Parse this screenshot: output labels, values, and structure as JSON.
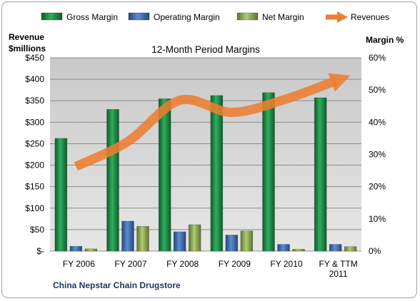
{
  "chart_data": {
    "type": "bar",
    "title": "12-Month Period Margins",
    "company": "China Nepstar Chain Drugstore",
    "ylabel_left": [
      "Revenue",
      "$millions"
    ],
    "ylabel_right": "Margin %",
    "categories": [
      [
        "FY 2006"
      ],
      [
        "FY 2007"
      ],
      [
        "FY 2008"
      ],
      [
        "FY 2009"
      ],
      [
        "FY 2010"
      ],
      [
        "FY & TTM",
        "2011"
      ]
    ],
    "left_axis": {
      "ylim": [
        0,
        450
      ],
      "ticks": [
        "$-",
        "$50",
        "$100",
        "$150",
        "$200",
        "$250",
        "$300",
        "$350",
        "$400",
        "$450"
      ]
    },
    "right_axis": {
      "ylim": [
        0,
        60
      ],
      "ticks": [
        "0%",
        "10%",
        "20%",
        "30%",
        "40%",
        "50%",
        "60%"
      ]
    },
    "legend_position": "top",
    "grid": true,
    "series": [
      {
        "name": "Gross Margin",
        "axis": "right",
        "unit": "%",
        "values": [
          35.0,
          44.0,
          47.3,
          48.3,
          49.2,
          47.6
        ],
        "color": "#1e8b45"
      },
      {
        "name": "Operating Margin",
        "axis": "right",
        "unit": "%",
        "values": [
          1.5,
          9.3,
          6.0,
          5.0,
          2.1,
          2.1
        ],
        "color": "#3d6fb6"
      },
      {
        "name": "Net Margin",
        "axis": "right",
        "unit": "%",
        "values": [
          0.7,
          7.7,
          8.2,
          6.3,
          0.6,
          1.4
        ],
        "color": "#8fb04c"
      },
      {
        "name": "Revenues",
        "axis": "left",
        "unit": "$millions",
        "values": [
          197,
          255,
          351,
          323,
          352,
          396
        ],
        "color": "#ed7d31"
      }
    ]
  }
}
